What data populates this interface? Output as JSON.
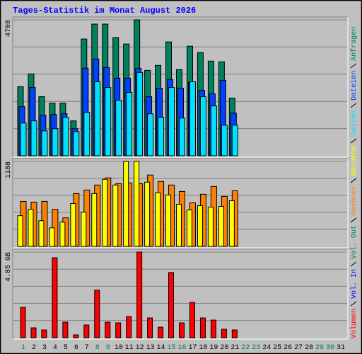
{
  "chart_data": [
    {
      "type": "bar",
      "title": "Tages-Statistik im Monat August 2026",
      "ylim": [
        0,
        4708
      ],
      "yticks": [
        4708
      ],
      "grid": true,
      "grid_divisions": 5,
      "series": [
        {
          "name": "Anfragen",
          "color": "#00805c",
          "values": [
            2391,
            2835,
            2046,
            1824,
            1824,
            1208,
            4043,
            4560,
            4560,
            4092,
            3870,
            4708,
            2958,
            3131,
            3944,
            2983,
            3796,
            3574,
            3278,
            3254,
            1997,
            null,
            null,
            null,
            null,
            null,
            null,
            null,
            null,
            null,
            null
          ]
        },
        {
          "name": "Dateien",
          "color": "#0040ff",
          "values": [
            1701,
            2366,
            1405,
            1430,
            1454,
            937,
            3032,
            3352,
            3057,
            2687,
            2687,
            3032,
            2046,
            2342,
            2638,
            2342,
            2539,
            2268,
            2145,
            2613,
            1479,
            null,
            null,
            null,
            null,
            null,
            null,
            null,
            null,
            null,
            null
          ]
        },
        {
          "name": "Seiten",
          "color": "#00e0ff",
          "values": [
            1134,
            1208,
            863,
            937,
            1331,
            838,
            1504,
            2564,
            2366,
            1923,
            2194,
            2884,
            1454,
            1331,
            2366,
            1306,
            2564,
            2046,
            1725,
            1060,
            1060,
            null,
            null,
            null,
            null,
            null,
            null,
            null,
            null,
            null,
            null
          ]
        }
      ]
    },
    {
      "type": "bar",
      "ylim": [
        0,
        1188
      ],
      "yticks": [
        1188
      ],
      "grid": true,
      "grid_divisions": 5,
      "series": [
        {
          "name": "Besuche",
          "color": "#ffff00",
          "values": [
            429,
            519,
            359,
            259,
            339,
            599,
            479,
            739,
            938,
            858,
            1188,
            1188,
            898,
            749,
            719,
            589,
            509,
            569,
            549,
            559,
            639,
            null,
            null,
            null,
            null,
            null,
            null,
            null,
            null,
            null,
            null
          ]
        },
        {
          "name": "Rechner",
          "color": "#ff8000",
          "values": [
            629,
            619,
            629,
            519,
            399,
            739,
            788,
            858,
            958,
            878,
            888,
            878,
            998,
            908,
            858,
            768,
            609,
            729,
            838,
            699,
            778,
            null,
            null,
            null,
            null,
            null,
            null,
            null,
            null,
            null,
            null
          ]
        }
      ]
    },
    {
      "type": "bar",
      "ylim": [
        0,
        4.85
      ],
      "yticks": [
        {
          "value": 4.85,
          "label": "4.85 GB"
        }
      ],
      "grid": true,
      "grid_divisions": 5,
      "categories": [
        "1",
        "2",
        "3",
        "4",
        "5",
        "6",
        "7",
        "8",
        "9",
        "10",
        "11",
        "12",
        "13",
        "14",
        "15",
        "16",
        "17",
        "18",
        "19",
        "20",
        "21",
        "22",
        "23",
        "24",
        "25",
        "26",
        "27",
        "28",
        "29",
        "30",
        "31"
      ],
      "category_colors": [
        "#008040",
        "#000000",
        "#000000",
        "#000000",
        "#000000",
        "#000000",
        "#000000",
        "#008040",
        "#008040",
        "#000000",
        "#000000",
        "#000000",
        "#000000",
        "#000000",
        "#008040",
        "#008040",
        "#000000",
        "#000000",
        "#000000",
        "#000000",
        "#000000",
        "#008040",
        "#008040",
        "#000000",
        "#000000",
        "#000000",
        "#000000",
        "#000000",
        "#008040",
        "#008040",
        "#000000"
      ],
      "series": [
        {
          "name": "Vol. Out",
          "color": "#00805c"
        },
        {
          "name": "Vol. In",
          "color": "#0000ff"
        },
        {
          "name": "Volumen",
          "color": "#ff0000",
          "values": [
            1.72,
            0.56,
            0.44,
            4.53,
            0.88,
            0.16,
            0.72,
            2.69,
            0.88,
            0.84,
            1.2,
            4.85,
            1.12,
            0.6,
            3.69,
            0.84,
            2.0,
            1.12,
            1.0,
            0.48,
            0.44,
            null,
            null,
            null,
            null,
            null,
            null,
            null,
            null,
            null,
            null
          ]
        }
      ]
    }
  ]
}
